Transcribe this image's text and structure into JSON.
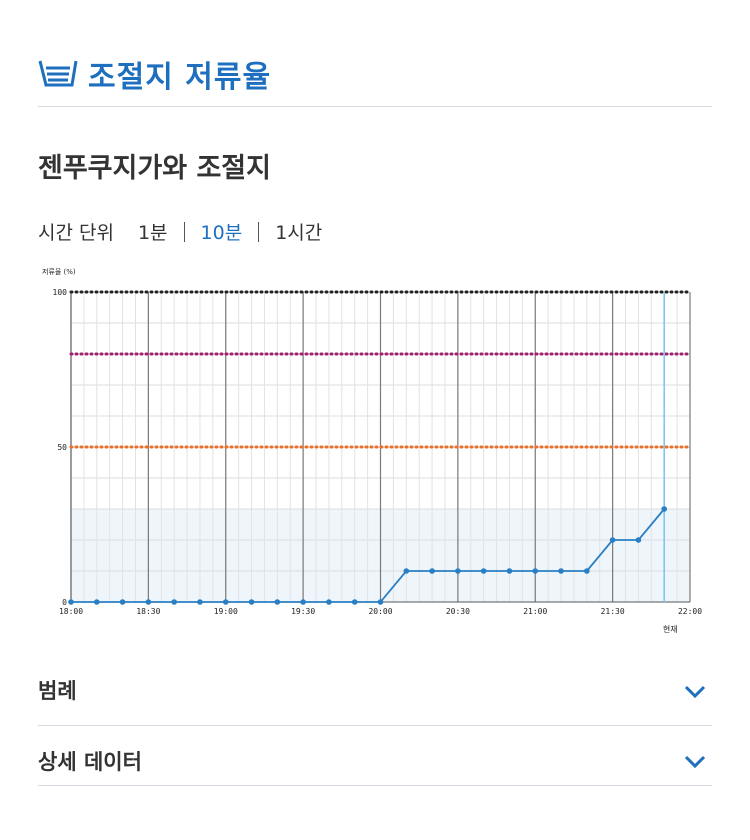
{
  "header": {
    "title": "조절지 저류율",
    "icon": "reservoir-icon",
    "color": "#1f6fbf"
  },
  "subtitle": "젠푸쿠지가와 조절지",
  "time_unit": {
    "label": "시간 단위",
    "options": [
      "1분",
      "10분",
      "1시간"
    ],
    "selected": "10분"
  },
  "chart_data": {
    "type": "line",
    "ylabel": "저류율 (%)",
    "ylim": [
      0,
      100
    ],
    "yticks": [
      0,
      50,
      100
    ],
    "x_tick_labels": [
      "18:00",
      "18:30",
      "19:00",
      "19:30",
      "20:00",
      "20:30",
      "21:00",
      "21:30",
      "22:00"
    ],
    "x": [
      "18:00",
      "18:10",
      "18:20",
      "18:30",
      "18:40",
      "18:50",
      "19:00",
      "19:10",
      "19:20",
      "19:30",
      "19:40",
      "19:50",
      "20:00",
      "20:10",
      "20:20",
      "20:30",
      "20:40",
      "20:50",
      "21:00",
      "21:10",
      "21:20",
      "21:30",
      "21:40",
      "21:50"
    ],
    "series": [
      {
        "values": [
          0,
          0,
          0,
          0,
          0,
          0,
          0,
          0,
          0,
          0,
          0,
          0,
          0,
          10,
          10,
          10,
          10,
          10,
          10,
          10,
          10,
          20,
          20,
          30
        ],
        "color": "#2a7fc4"
      }
    ],
    "thresholds": [
      {
        "value": 100,
        "color": "#222222"
      },
      {
        "value": 80,
        "color": "#a0206e"
      },
      {
        "value": 50,
        "color": "#e8702a"
      }
    ],
    "shaded_band_max": 30,
    "current_time": "21:50",
    "current_label": "현재",
    "grid": true
  },
  "accordions": [
    {
      "label": "범례"
    },
    {
      "label": "상세 데이터"
    }
  ]
}
